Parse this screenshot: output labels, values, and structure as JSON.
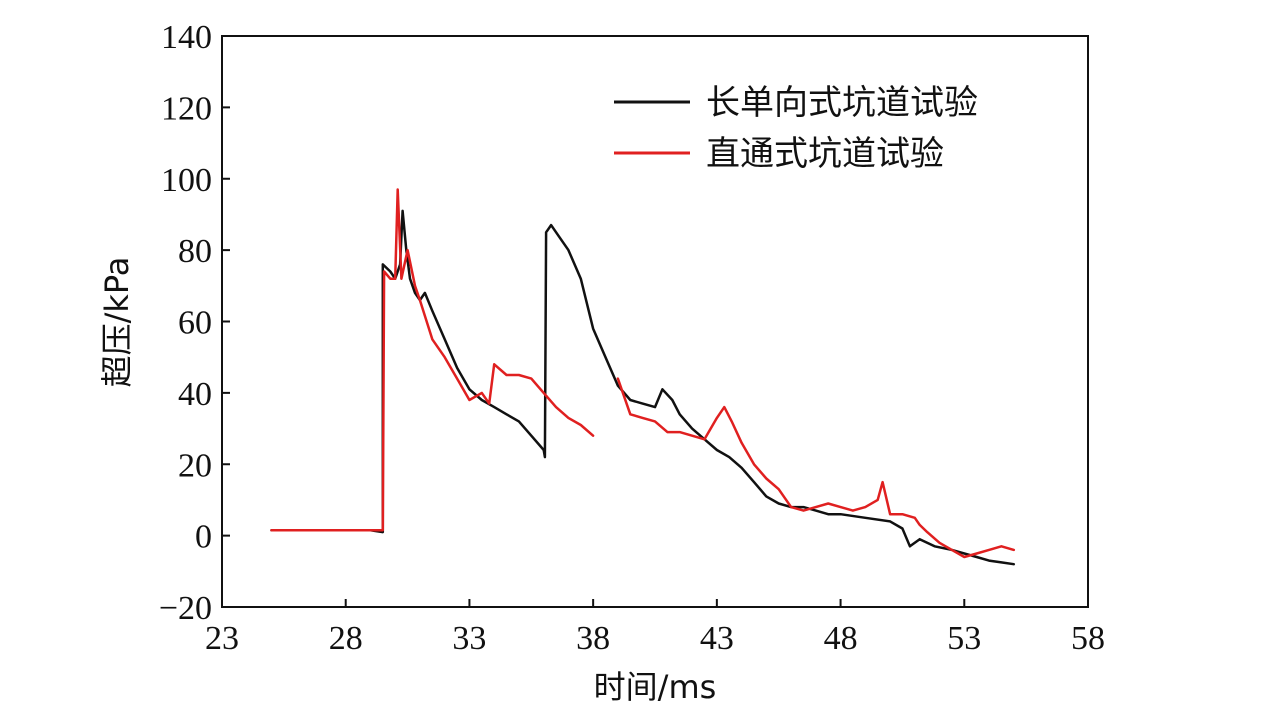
{
  "chart_data": {
    "type": "line",
    "xlabel": "时间/ms",
    "ylabel": "超压/kPa",
    "xlim": [
      23,
      58
    ],
    "ylim": [
      -20,
      140
    ],
    "x_ticks": [
      "23",
      "28",
      "33",
      "38",
      "43",
      "48",
      "53",
      "58"
    ],
    "y_ticks": [
      "−20",
      "0",
      "20",
      "40",
      "60",
      "80",
      "100",
      "120",
      "140"
    ],
    "grid": false,
    "legend_position": "top-right",
    "series": [
      {
        "name": "长单向式坑道试验",
        "color": "#111111",
        "points": [
          [
            25.0,
            1.5
          ],
          [
            26.5,
            1.5
          ],
          [
            28.0,
            1.5
          ],
          [
            29.0,
            1.5
          ],
          [
            29.5,
            1.0
          ],
          [
            29.5,
            76
          ],
          [
            29.8,
            74
          ],
          [
            30.0,
            72
          ],
          [
            30.2,
            76
          ],
          [
            30.3,
            91
          ],
          [
            30.45,
            80
          ],
          [
            30.6,
            72
          ],
          [
            30.8,
            68
          ],
          [
            31.0,
            66
          ],
          [
            31.2,
            68
          ],
          [
            31.5,
            63
          ],
          [
            32.0,
            55
          ],
          [
            32.5,
            47
          ],
          [
            33.0,
            41
          ],
          [
            33.5,
            38
          ],
          [
            34.0,
            36
          ],
          [
            34.5,
            34
          ],
          [
            35.0,
            32
          ],
          [
            35.5,
            28
          ],
          [
            36.0,
            24
          ],
          [
            36.05,
            22
          ],
          [
            36.1,
            85
          ],
          [
            36.3,
            87
          ],
          [
            36.6,
            84
          ],
          [
            37.0,
            80
          ],
          [
            37.5,
            72
          ],
          [
            38.0,
            58
          ],
          [
            38.5,
            50
          ],
          [
            39.0,
            42
          ],
          [
            39.5,
            38
          ],
          [
            40.0,
            37
          ],
          [
            40.5,
            36
          ],
          [
            40.8,
            41
          ],
          [
            41.2,
            38
          ],
          [
            41.5,
            34
          ],
          [
            42.0,
            30
          ],
          [
            42.5,
            27
          ],
          [
            43.0,
            24
          ],
          [
            43.5,
            22
          ],
          [
            44.0,
            19
          ],
          [
            44.5,
            15
          ],
          [
            45.0,
            11
          ],
          [
            45.5,
            9
          ],
          [
            46.0,
            8
          ],
          [
            46.5,
            8
          ],
          [
            47.0,
            7
          ],
          [
            47.5,
            6
          ],
          [
            48.0,
            6
          ],
          [
            49.0,
            5
          ],
          [
            50.0,
            4
          ],
          [
            50.5,
            2
          ],
          [
            50.8,
            -3
          ],
          [
            51.2,
            -1
          ],
          [
            51.8,
            -3
          ],
          [
            52.5,
            -4
          ],
          [
            53.0,
            -5
          ],
          [
            53.5,
            -6
          ],
          [
            54.0,
            -7
          ],
          [
            54.5,
            -7.5
          ],
          [
            55.0,
            -8
          ]
        ]
      },
      {
        "name": "直通式坑道试验",
        "color": "#e02020",
        "points": [
          [
            25.0,
            1.5
          ],
          [
            26.5,
            1.5
          ],
          [
            28.0,
            1.5
          ],
          [
            29.0,
            1.5
          ],
          [
            29.5,
            1.5
          ],
          [
            29.55,
            74
          ],
          [
            29.8,
            72
          ],
          [
            30.0,
            72
          ],
          [
            30.1,
            97
          ],
          [
            30.25,
            72
          ],
          [
            30.5,
            80
          ],
          [
            30.8,
            70
          ],
          [
            31.0,
            66
          ],
          [
            31.5,
            55
          ],
          [
            32.0,
            50
          ],
          [
            32.5,
            44
          ],
          [
            33.0,
            38
          ],
          [
            33.5,
            40
          ],
          [
            33.8,
            37
          ],
          [
            34.0,
            48
          ],
          [
            34.5,
            45
          ],
          [
            35.0,
            45
          ],
          [
            35.5,
            44
          ],
          [
            36.0,
            40
          ],
          [
            36.5,
            36
          ],
          [
            37.0,
            33
          ],
          [
            37.5,
            31
          ],
          [
            38.0,
            28
          ],
          [
            38.05,
            null
          ],
          [
            39.0,
            44
          ],
          [
            39.5,
            34
          ],
          [
            40.0,
            33
          ],
          [
            40.5,
            32
          ],
          [
            41.0,
            29
          ],
          [
            41.5,
            29
          ],
          [
            42.0,
            28
          ],
          [
            42.5,
            27
          ],
          [
            43.0,
            33
          ],
          [
            43.3,
            36
          ],
          [
            43.6,
            32
          ],
          [
            44.0,
            26
          ],
          [
            44.5,
            20
          ],
          [
            45.0,
            16
          ],
          [
            45.5,
            13
          ],
          [
            46.0,
            8
          ],
          [
            46.5,
            7
          ],
          [
            47.0,
            8
          ],
          [
            47.5,
            9
          ],
          [
            48.0,
            8
          ],
          [
            48.5,
            7
          ],
          [
            49.0,
            8
          ],
          [
            49.5,
            10
          ],
          [
            49.7,
            15
          ],
          [
            50.0,
            6
          ],
          [
            50.5,
            6
          ],
          [
            51.0,
            5
          ],
          [
            51.2,
            3
          ],
          [
            51.5,
            1
          ],
          [
            52.0,
            -2
          ],
          [
            52.5,
            -4
          ],
          [
            53.0,
            -6
          ],
          [
            53.5,
            -5
          ],
          [
            54.0,
            -4
          ],
          [
            54.5,
            -3
          ],
          [
            55.0,
            -4
          ]
        ]
      }
    ]
  }
}
